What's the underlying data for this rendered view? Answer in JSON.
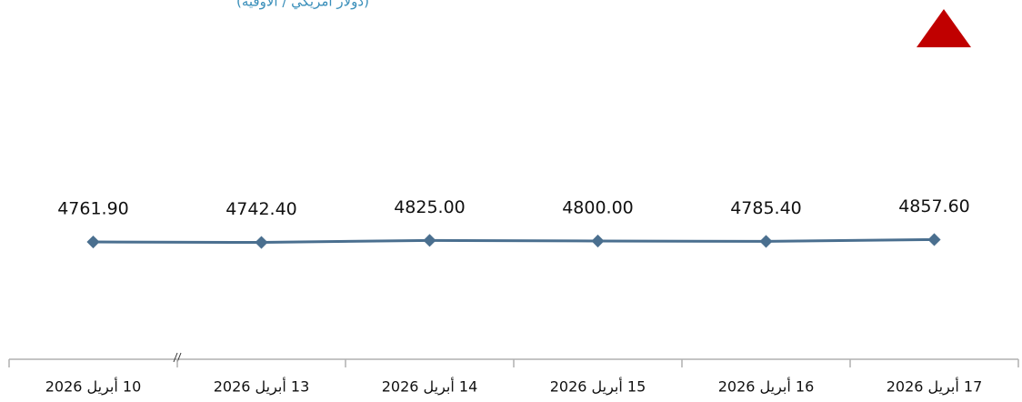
{
  "chart_data": {
    "type": "line",
    "subtitle": "(دولار أمريكي / الأوقية)",
    "categories": [
      "10 أبريل 2026",
      "13 أبريل 2026",
      "14 أبريل 2026",
      "15 أبريل 2026",
      "16 أبريل 2026",
      "17 أبريل 2026"
    ],
    "series": [
      {
        "name": "",
        "color": "#4a6f8f",
        "values": [
          4761.9,
          4742.4,
          4825,
          4800,
          4785.4,
          4857.6
        ],
        "value_labels": [
          "4761.90",
          "4742.40",
          "4825.00",
          "4800.00",
          "4785.40",
          "4857.60"
        ]
      }
    ],
    "ylim": [
      0,
      12000
    ]
  }
}
